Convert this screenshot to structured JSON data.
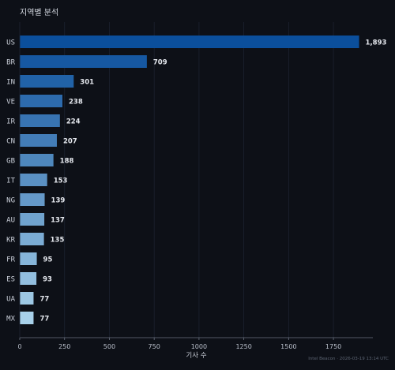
{
  "chart_data": {
    "type": "bar",
    "orientation": "horizontal",
    "title": "지역별 분석",
    "xlabel": "기사 수",
    "ylabel": "",
    "categories": [
      "US",
      "BR",
      "IN",
      "VE",
      "IR",
      "CN",
      "GB",
      "IT",
      "NG",
      "AU",
      "KR",
      "FR",
      "ES",
      "UA",
      "MX"
    ],
    "values": [
      1893,
      709,
      301,
      238,
      224,
      207,
      188,
      153,
      139,
      137,
      135,
      95,
      93,
      77,
      77
    ],
    "value_labels": [
      "1,893",
      "709",
      "301",
      "238",
      "224",
      "207",
      "188",
      "153",
      "139",
      "137",
      "135",
      "95",
      "93",
      "77",
      "77"
    ],
    "xlim": [
      0,
      1970
    ],
    "xticks": [
      0,
      250,
      500,
      750,
      1000,
      1250,
      1500,
      1750
    ],
    "grid": true,
    "colors": {
      "background": "#0d1017",
      "bar_darkest": "#0b4f9c",
      "bar_lightest": "#a8d1ea",
      "grid": "#1c2230",
      "axis": "#6b7280"
    }
  },
  "watermark": "Intel Beacon · 2026-03-19 13:14 UTC"
}
